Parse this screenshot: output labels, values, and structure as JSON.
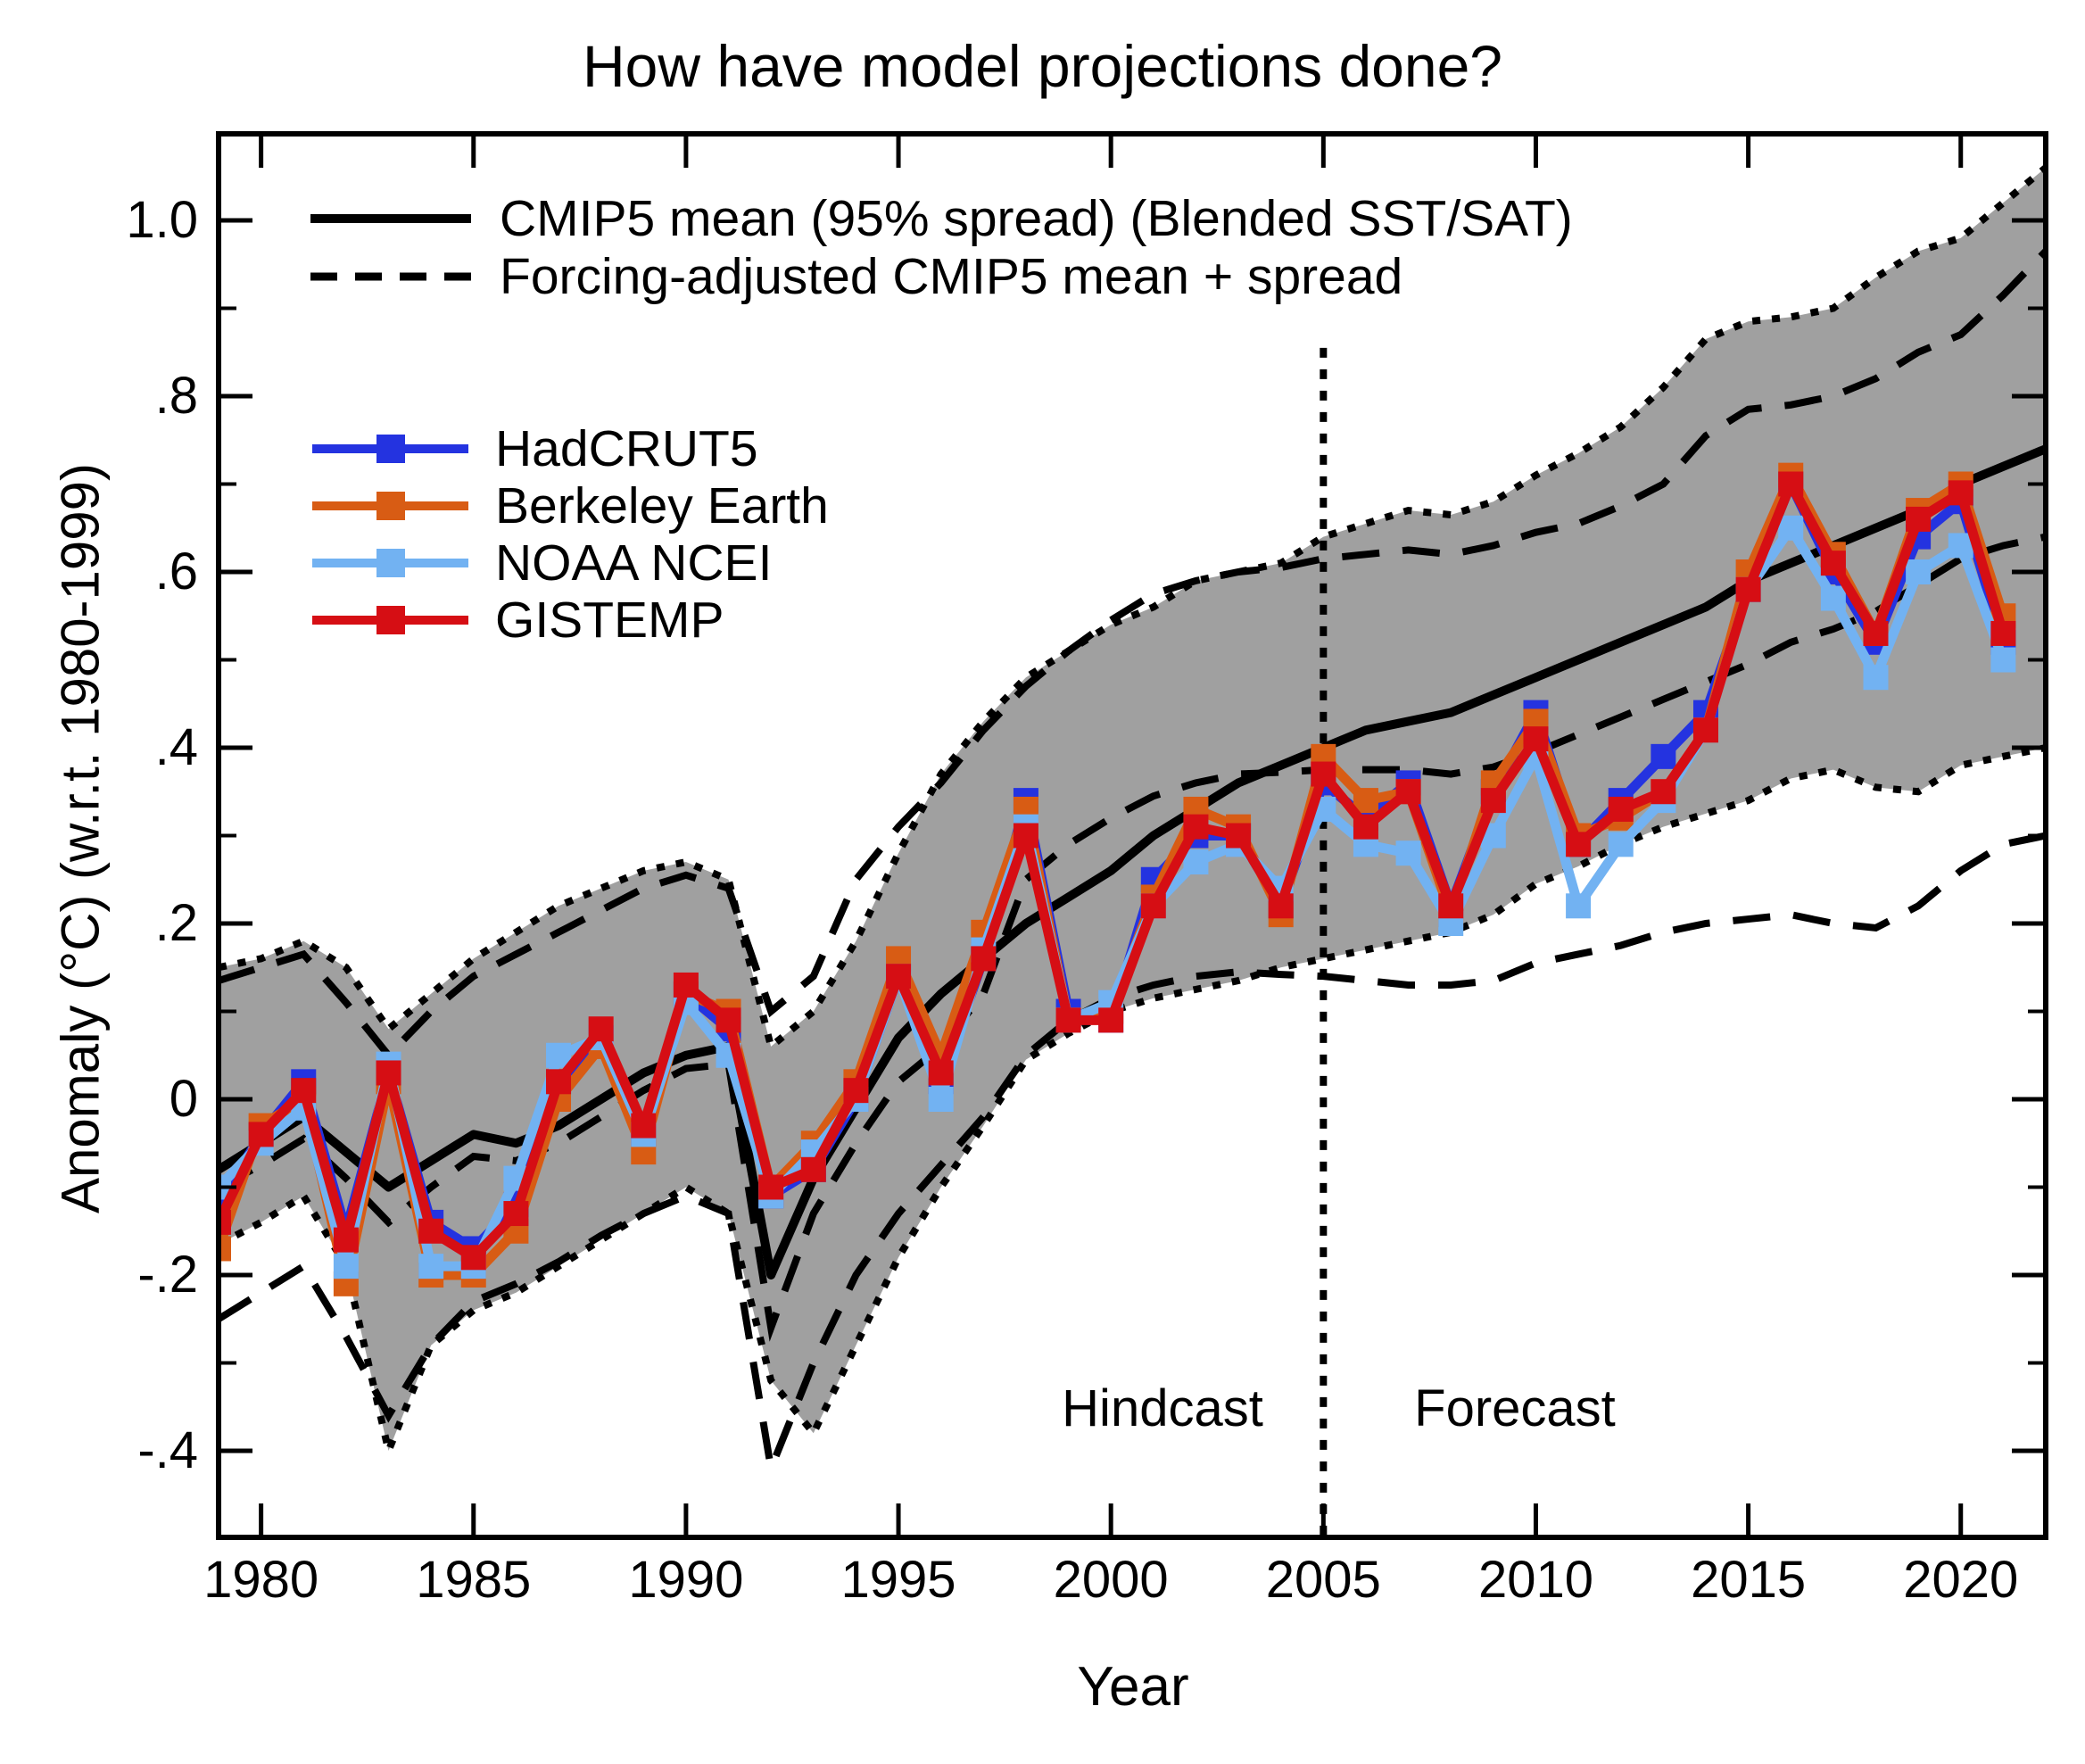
{
  "title": "How have model projections done?",
  "axes": {
    "x_label": "Year",
    "y_label": "Anomaly (°C) (w.r.t. 1980-1999)",
    "x_ticks": [
      1980,
      1985,
      1990,
      1995,
      2000,
      2005,
      2010,
      2015,
      2020
    ],
    "x_tick_labels": [
      "1980",
      "1985",
      "1990",
      "1995",
      "2000",
      "2005",
      "2010",
      "2015",
      "2020"
    ],
    "y_ticks": [
      1.0,
      0.8,
      0.6,
      0.4,
      0.2,
      0.0,
      -0.2,
      -0.4
    ],
    "y_tick_labels": [
      "1.0",
      ".8",
      ".6",
      ".4",
      ".2",
      "0",
      "-.2",
      "-.4"
    ],
    "xlim": [
      1979,
      2022
    ],
    "ylim": [
      -0.5,
      1.1
    ]
  },
  "legend_models": {
    "items": [
      {
        "label": "CMIP5 mean (95% spread) (Blended SST/SAT)",
        "style": "solid"
      },
      {
        "label": "Forcing-adjusted CMIP5 mean + spread",
        "style": "dashed"
      }
    ]
  },
  "legend_obs": {
    "items": [
      {
        "label": "HadCRUT5",
        "color": "#2433e0"
      },
      {
        "label": "Berkeley Earth",
        "color": "#d85c14"
      },
      {
        "label": "NOAA NCEI",
        "color": "#72b2f2"
      },
      {
        "label": "GISTEMP",
        "color": "#d60e14"
      }
    ]
  },
  "annotations": {
    "hindcast": "Hindcast",
    "forecast": "Forecast",
    "divider_year": 2005
  },
  "colors": {
    "band_fill": "#a0a0a0",
    "model_line": "#000000",
    "hadcrut5": "#2433e0",
    "berkeley": "#d85c14",
    "noaa": "#72b2f2",
    "gistemp": "#d60e14"
  },
  "chart_data": {
    "type": "line",
    "title": "How have model projections done?",
    "xlabel": "Year",
    "ylabel": "Anomaly (°C) (w.r.t. 1980-1999)",
    "xlim": [
      1979,
      2022
    ],
    "ylim": [
      -0.5,
      1.1
    ],
    "grid": false,
    "legend_position": "upper-left-inside",
    "years_model": [
      1979,
      1980,
      1981,
      1982,
      1983,
      1984,
      1985,
      1986,
      1987,
      1988,
      1989,
      1990,
      1991,
      1992,
      1993,
      1994,
      1995,
      1996,
      1997,
      1998,
      1999,
      2000,
      2001,
      2002,
      2003,
      2004,
      2005,
      2006,
      2007,
      2008,
      2009,
      2010,
      2011,
      2012,
      2013,
      2014,
      2015,
      2016,
      2017,
      2018,
      2019,
      2020,
      2021,
      2022
    ],
    "cmip5_mean": [
      -0.08,
      -0.05,
      -0.02,
      -0.06,
      -0.1,
      -0.07,
      -0.04,
      -0.05,
      -0.03,
      0.0,
      0.03,
      0.05,
      0.06,
      -0.2,
      -0.09,
      -0.01,
      0.07,
      0.12,
      0.16,
      0.2,
      0.23,
      0.26,
      0.3,
      0.33,
      0.36,
      0.38,
      0.4,
      0.42,
      0.43,
      0.44,
      0.46,
      0.48,
      0.5,
      0.52,
      0.54,
      0.56,
      0.59,
      0.61,
      0.63,
      0.65,
      0.67,
      0.7,
      0.72,
      0.74
    ],
    "cmip5_spread_top": [
      0.15,
      0.16,
      0.18,
      0.15,
      0.08,
      0.12,
      0.16,
      0.19,
      0.22,
      0.24,
      0.26,
      0.27,
      0.25,
      0.06,
      0.1,
      0.18,
      0.28,
      0.37,
      0.43,
      0.48,
      0.51,
      0.54,
      0.56,
      0.59,
      0.6,
      0.61,
      0.64,
      0.655,
      0.67,
      0.665,
      0.68,
      0.71,
      0.735,
      0.765,
      0.81,
      0.865,
      0.885,
      0.89,
      0.9,
      0.935,
      0.965,
      0.98,
      1.02,
      1.06
    ],
    "cmip5_spread_bottom": [
      -0.165,
      -0.14,
      -0.11,
      -0.19,
      -0.4,
      -0.28,
      -0.24,
      -0.22,
      -0.19,
      -0.16,
      -0.13,
      -0.1,
      -0.13,
      -0.32,
      -0.38,
      -0.28,
      -0.18,
      -0.1,
      -0.03,
      0.045,
      0.075,
      0.1,
      0.115,
      0.125,
      0.135,
      0.15,
      0.16,
      0.17,
      0.18,
      0.19,
      0.21,
      0.245,
      0.265,
      0.29,
      0.31,
      0.325,
      0.34,
      0.365,
      0.375,
      0.355,
      0.35,
      0.38,
      0.39,
      0.4
    ],
    "adjusted_mean": [
      -0.1,
      -0.075,
      -0.045,
      -0.09,
      -0.14,
      -0.1,
      -0.065,
      -0.07,
      -0.05,
      -0.02,
      0.01,
      0.035,
      0.04,
      -0.26,
      -0.13,
      -0.05,
      0.02,
      0.06,
      0.12,
      0.25,
      0.29,
      0.32,
      0.345,
      0.36,
      0.37,
      0.372,
      0.375,
      0.375,
      0.375,
      0.37,
      0.378,
      0.395,
      0.415,
      0.435,
      0.455,
      0.475,
      0.495,
      0.52,
      0.535,
      0.555,
      0.585,
      0.615,
      0.63,
      0.64
    ],
    "adjusted_spread_top": [
      0.135,
      0.15,
      0.165,
      0.11,
      0.05,
      0.1,
      0.14,
      0.165,
      0.19,
      0.215,
      0.24,
      0.255,
      0.24,
      0.1,
      0.14,
      0.25,
      0.31,
      0.36,
      0.42,
      0.47,
      0.51,
      0.545,
      0.575,
      0.59,
      0.6,
      0.605,
      0.615,
      0.62,
      0.625,
      0.62,
      0.63,
      0.645,
      0.655,
      0.675,
      0.7,
      0.755,
      0.785,
      0.79,
      0.8,
      0.82,
      0.85,
      0.87,
      0.915,
      0.965
    ],
    "adjusted_spread_bottom": [
      -0.25,
      -0.22,
      -0.19,
      -0.27,
      -0.36,
      -0.28,
      -0.23,
      -0.21,
      -0.185,
      -0.155,
      -0.13,
      -0.11,
      -0.13,
      -0.42,
      -0.3,
      -0.2,
      -0.13,
      -0.075,
      -0.02,
      0.05,
      0.09,
      0.115,
      0.13,
      0.14,
      0.145,
      0.142,
      0.14,
      0.135,
      0.13,
      0.13,
      0.135,
      0.155,
      0.165,
      0.175,
      0.19,
      0.2,
      0.205,
      0.21,
      0.2,
      0.195,
      0.22,
      0.26,
      0.29,
      0.3
    ],
    "years_obs": [
      1979,
      1980,
      1981,
      1982,
      1983,
      1984,
      1985,
      1986,
      1987,
      1988,
      1989,
      1990,
      1991,
      1992,
      1993,
      1994,
      1995,
      1996,
      1997,
      1998,
      1999,
      2000,
      2001,
      2002,
      2003,
      2004,
      2005,
      2006,
      2007,
      2008,
      2009,
      2010,
      2011,
      2012,
      2013,
      2014,
      2015,
      2016,
      2017,
      2018,
      2019,
      2020,
      2021
    ],
    "series": [
      {
        "name": "HadCRUT5",
        "color": "#2433e0",
        "values": [
          -0.12,
          -0.04,
          0.02,
          -0.15,
          0.03,
          -0.14,
          -0.17,
          -0.12,
          0.02,
          0.07,
          -0.04,
          0.12,
          0.08,
          -0.11,
          -0.08,
          0.0,
          0.14,
          0.02,
          0.16,
          0.34,
          0.1,
          0.09,
          0.25,
          0.3,
          0.3,
          0.22,
          0.36,
          0.32,
          0.36,
          0.22,
          0.35,
          0.44,
          0.29,
          0.34,
          0.39,
          0.44,
          0.58,
          0.7,
          0.6,
          0.52,
          0.64,
          0.68,
          0.52
        ]
      },
      {
        "name": "Berkeley Earth",
        "color": "#d85c14",
        "values": [
          -0.17,
          -0.03,
          0.0,
          -0.21,
          0.02,
          -0.2,
          -0.2,
          -0.15,
          0.0,
          0.06,
          -0.06,
          0.12,
          0.1,
          -0.1,
          -0.05,
          0.02,
          0.16,
          0.05,
          0.19,
          0.33,
          0.09,
          0.1,
          0.23,
          0.33,
          0.31,
          0.21,
          0.39,
          0.34,
          0.35,
          0.21,
          0.36,
          0.43,
          0.3,
          0.32,
          0.35,
          0.42,
          0.6,
          0.71,
          0.62,
          0.53,
          0.67,
          0.7,
          0.55
        ]
      },
      {
        "name": "NOAA NCEI",
        "color": "#72b2f2",
        "values": [
          -0.1,
          -0.05,
          -0.01,
          -0.19,
          0.04,
          -0.19,
          -0.19,
          -0.09,
          0.05,
          0.07,
          -0.04,
          0.11,
          0.05,
          -0.11,
          -0.06,
          0.0,
          0.14,
          0.0,
          0.17,
          0.31,
          0.09,
          0.11,
          0.22,
          0.27,
          0.29,
          0.24,
          0.33,
          0.29,
          0.28,
          0.2,
          0.3,
          0.39,
          0.22,
          0.29,
          0.34,
          0.42,
          0.58,
          0.65,
          0.57,
          0.48,
          0.6,
          0.63,
          0.5
        ]
      },
      {
        "name": "GISTEMP",
        "color": "#d60e14",
        "values": [
          -0.14,
          -0.04,
          0.01,
          -0.16,
          0.03,
          -0.15,
          -0.18,
          -0.13,
          0.02,
          0.08,
          -0.03,
          0.13,
          0.09,
          -0.1,
          -0.08,
          0.01,
          0.14,
          0.03,
          0.16,
          0.3,
          0.09,
          0.09,
          0.22,
          0.31,
          0.3,
          0.22,
          0.37,
          0.31,
          0.35,
          0.22,
          0.34,
          0.41,
          0.29,
          0.33,
          0.35,
          0.42,
          0.58,
          0.7,
          0.61,
          0.53,
          0.66,
          0.69,
          0.53
        ]
      }
    ]
  }
}
